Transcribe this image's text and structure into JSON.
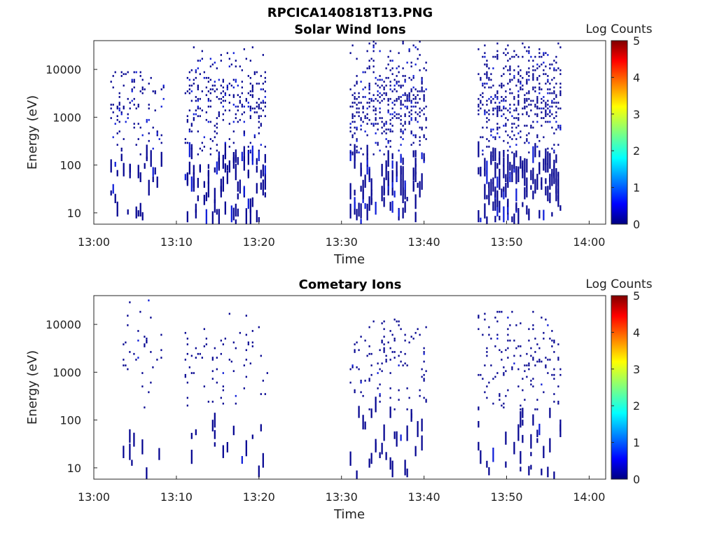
{
  "figure_title": "RPCICA140818T13.PNG",
  "chart_data": [
    {
      "type": "heatmap",
      "title": "Solar Wind Ions",
      "xlabel": "Time",
      "ylabel": "Energy (eV)",
      "yscale": "log",
      "ylim": [
        5.8,
        40000
      ],
      "xlim": [
        "13:00",
        "14:02"
      ],
      "x_ticks": [
        "13:00",
        "13:10",
        "13:20",
        "13:30",
        "13:40",
        "13:50",
        "14:00"
      ],
      "y_ticks": [
        "10",
        "100",
        "1000",
        "10000"
      ],
      "grid": false,
      "colorbar": {
        "label": "Log Counts",
        "min": 0,
        "max": 5,
        "ticks": [
          "0",
          "1",
          "2",
          "3",
          "4",
          "5"
        ],
        "colormap": "jet"
      },
      "activity_intervals": [
        {
          "start": "13:02",
          "end": "13:08.5",
          "density": 0.13,
          "emax": 9000
        },
        {
          "start": "13:11",
          "end": "13:20.8",
          "density": 0.2,
          "emax": 30000
        },
        {
          "start": "13:31",
          "end": "13:40.4",
          "density": 0.28,
          "emax": 40000
        },
        {
          "start": "13:46.5",
          "end": "13:56.5",
          "density": 0.32,
          "emax": 35000
        }
      ],
      "max_log_counts_observed": 1.2
    },
    {
      "type": "heatmap",
      "title": "Cometary Ions",
      "xlabel": "Time",
      "ylabel": "Energy (eV)",
      "yscale": "log",
      "ylim": [
        5.8,
        40000
      ],
      "xlim": [
        "13:00",
        "14:02"
      ],
      "x_ticks": [
        "13:00",
        "13:10",
        "13:20",
        "13:30",
        "13:40",
        "13:50",
        "14:00"
      ],
      "y_ticks": [
        "10",
        "100",
        "1000",
        "10000"
      ],
      "grid": false,
      "colorbar": {
        "label": "Log Counts",
        "min": 0,
        "max": 5,
        "ticks": [
          "0",
          "1",
          "2",
          "3",
          "4",
          "5"
        ],
        "colormap": "jet"
      },
      "activity_intervals": [
        {
          "start": "13:03.5",
          "end": "13:08.5",
          "density": 0.04,
          "emax": 35000
        },
        {
          "start": "13:11",
          "end": "13:21",
          "density": 0.06,
          "emax": 20000
        },
        {
          "start": "13:31",
          "end": "13:40.4",
          "density": 0.08,
          "emax": 15000
        },
        {
          "start": "13:46.5",
          "end": "13:56.5",
          "density": 0.09,
          "emax": 20000
        }
      ],
      "max_log_counts_observed": 0.3
    }
  ]
}
